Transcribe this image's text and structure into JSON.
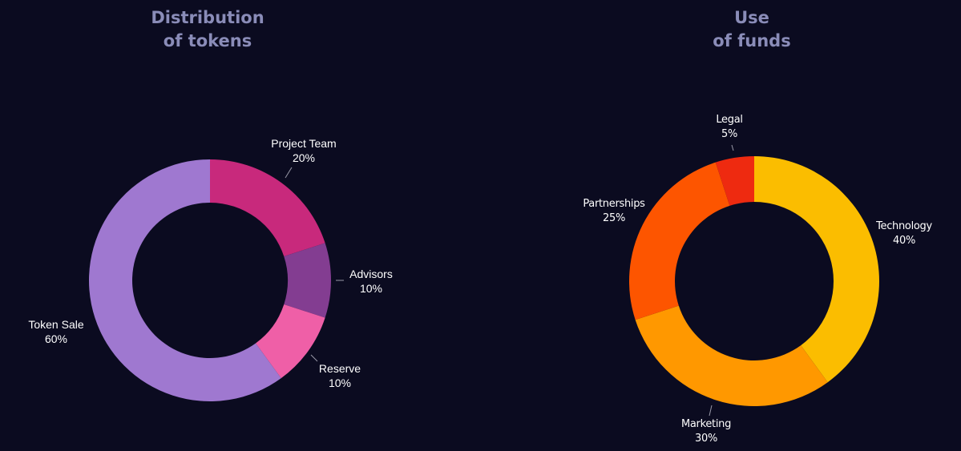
{
  "chart_data": [
    {
      "type": "pie",
      "title_lines": [
        "Distribution",
        "of tokens"
      ],
      "slices": [
        {
          "label": "Project Team",
          "value": 20,
          "value_label": "20%",
          "color": "#c8297c"
        },
        {
          "label": "Advisors",
          "value": 10,
          "value_label": "10%",
          "color": "#833d91"
        },
        {
          "label": "Reserve",
          "value": 10,
          "value_label": "10%",
          "color": "#ef5fa7"
        },
        {
          "label": "Token Sale",
          "value": 60,
          "value_label": "60%",
          "color": "#9f78d0"
        }
      ]
    },
    {
      "type": "pie",
      "title_lines": [
        "Use",
        "of funds"
      ],
      "slices": [
        {
          "label": "Technology",
          "value": 40,
          "value_label": "40%",
          "color": "#fbbd00"
        },
        {
          "label": "Marketing",
          "value": 30,
          "value_label": "30%",
          "color": "#ff9800"
        },
        {
          "label": "Partnerships",
          "value": 25,
          "value_label": "25%",
          "color": "#fd5500"
        },
        {
          "label": "Legal",
          "value": 5,
          "value_label": "5%",
          "color": "#ee2a10"
        }
      ]
    }
  ],
  "background_color": "#0b0b20",
  "title_color": "#8a8cb8"
}
